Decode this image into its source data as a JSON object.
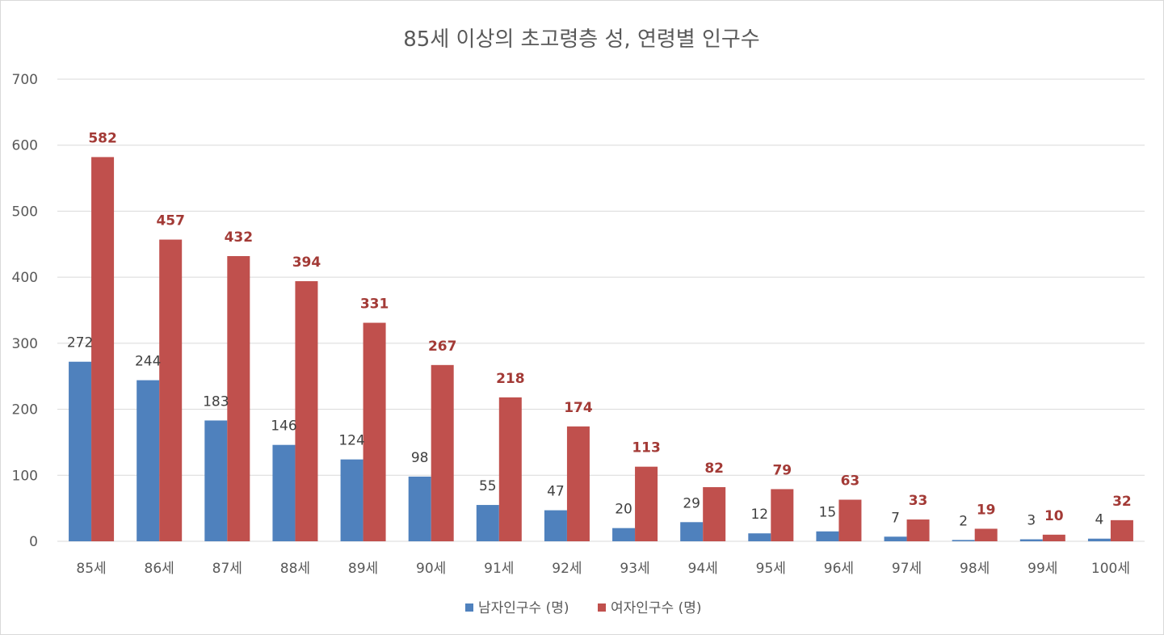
{
  "chart_data": {
    "type": "bar",
    "title": "85세 이상의 초고령층 성, 연령별 인구수",
    "categories": [
      "85세",
      "86세",
      "87세",
      "88세",
      "89세",
      "90세",
      "91세",
      "92세",
      "93세",
      "94세",
      "95세",
      "96세",
      "97세",
      "98세",
      "99세",
      "100세"
    ],
    "series": [
      {
        "name": "남자인구수 (명)",
        "color": "#4f81bd",
        "values": [
          272,
          244,
          183,
          146,
          124,
          98,
          55,
          47,
          20,
          29,
          12,
          15,
          7,
          2,
          3,
          4
        ]
      },
      {
        "name": "여자인구수 (명)",
        "color": "#c0504d",
        "values": [
          582,
          457,
          432,
          394,
          331,
          267,
          218,
          174,
          113,
          82,
          79,
          63,
          33,
          19,
          10,
          32
        ]
      }
    ],
    "yticks": [
      0,
      100,
      200,
      300,
      400,
      500,
      600,
      700
    ],
    "ylim": [
      0,
      700
    ],
    "grid": true,
    "legend": "bottom",
    "colors": {
      "male": "#4f81bd",
      "female": "#c0504d",
      "female_label": "#a33a36",
      "grid": "#d9d9d9"
    }
  }
}
